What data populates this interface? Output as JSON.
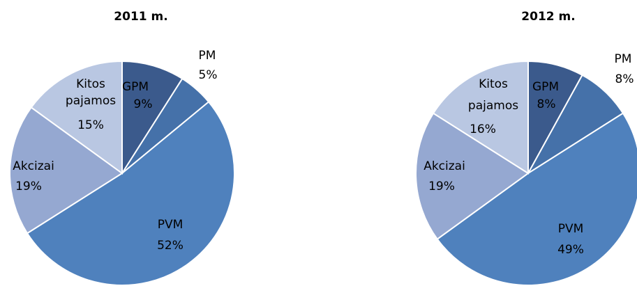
{
  "chart_data": [
    {
      "type": "pie",
      "title": "2011 m.",
      "slices": [
        {
          "name": "GPM",
          "value": 9,
          "label": "9%",
          "color": "#3B5A8C"
        },
        {
          "name": "PM",
          "value": 5,
          "label": "5%",
          "color": "#4571A9"
        },
        {
          "name": "PVM",
          "value": 52,
          "label": "52%",
          "color": "#4F81BD"
        },
        {
          "name": "Akcizai",
          "value": 19,
          "label": "19%",
          "color": "#95A8D1"
        },
        {
          "name": "Kitos pajamos",
          "value": 15,
          "label": "15%",
          "color": "#B9C7E2"
        }
      ]
    },
    {
      "type": "pie",
      "title": "2012 m.",
      "slices": [
        {
          "name": "GPM",
          "value": 8,
          "label": "8%",
          "color": "#3B5A8C"
        },
        {
          "name": "PM",
          "value": 8,
          "label": "8%",
          "color": "#4571A9"
        },
        {
          "name": "PVM",
          "value": 49,
          "label": "49%",
          "color": "#4F81BD"
        },
        {
          "name": "Akcizai",
          "value": 19,
          "label": "19%",
          "color": "#95A8D1"
        },
        {
          "name": "Kitos pajamos",
          "value": 16,
          "label": "16%",
          "color": "#B9C7E2"
        }
      ]
    }
  ]
}
